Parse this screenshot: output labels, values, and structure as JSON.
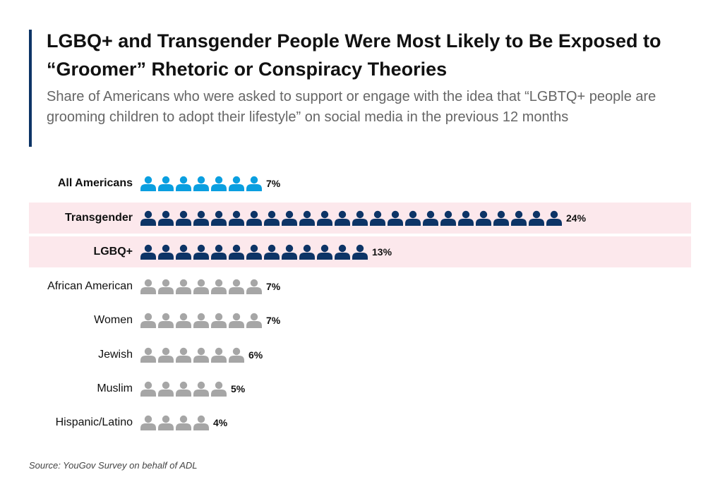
{
  "title": "LGBQ+ and Transgender People Were Most Likely to Be Exposed to “Groomer” Rhetoric or Conspiracy Theories",
  "subtitle": "Share of Americans who were asked to support or engage with the idea that “LGBTQ+ people are grooming children to adopt their lifestyle” on social media in the previous 12 months",
  "source": "Source: YouGov Survey on behalf of ADL",
  "chart_data": {
    "type": "pictograph",
    "unit": "one person icon = 1%",
    "categories": [
      "All Americans",
      "Transgender",
      "LGBQ+",
      "African American",
      "Women",
      "Jewish",
      "Muslim",
      "Hispanic/Latino"
    ],
    "values": [
      7,
      24,
      13,
      7,
      7,
      6,
      5,
      4
    ],
    "value_labels": [
      "7%",
      "24%",
      "13%",
      "7%",
      "7%",
      "6%",
      "5%",
      "4%"
    ],
    "highlighted": [
      false,
      true,
      true,
      false,
      false,
      false,
      false,
      false
    ],
    "bold_labels": [
      true,
      true,
      true,
      false,
      false,
      false,
      false,
      false
    ],
    "icon_colors": [
      "#0a9fe0",
      "#0d3466",
      "#0d3466",
      "#a6a6a6",
      "#a6a6a6",
      "#a6a6a6",
      "#a6a6a6",
      "#a6a6a6"
    ],
    "highlight_color": "#fce8ec"
  }
}
